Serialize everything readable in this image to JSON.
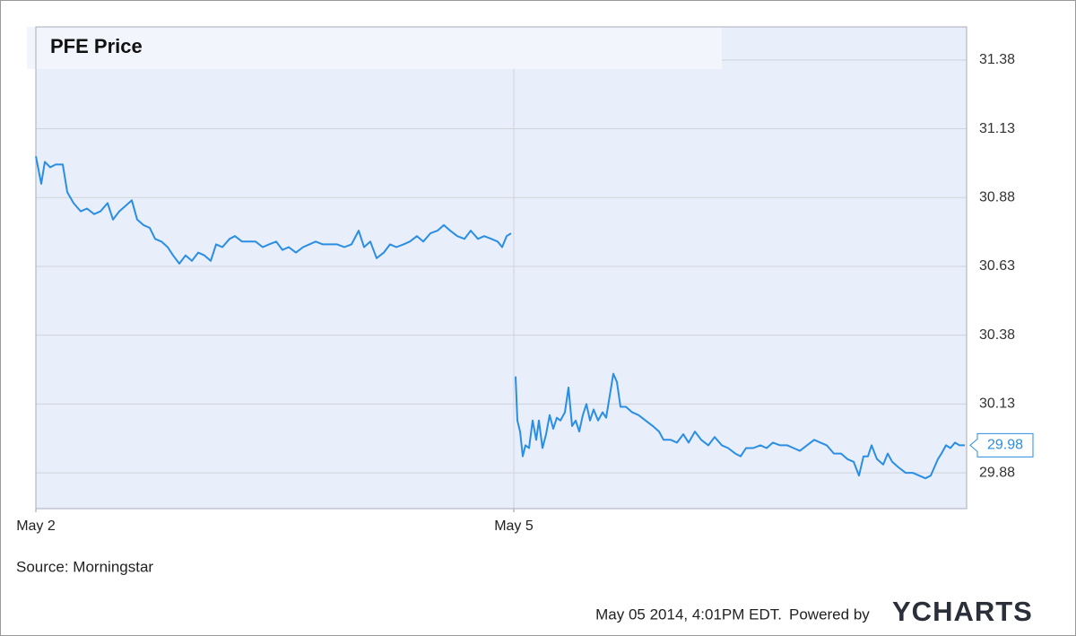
{
  "chart_data": {
    "type": "line",
    "title": "PFE Price",
    "source": "Source: Morningstar",
    "timestamp": "May 05 2014, 4:01PM EDT.",
    "powered_by": "Powered by",
    "brand": "YCHARTS",
    "xlim": [
      0,
      1038
    ],
    "xticks": [
      {
        "value": 0,
        "label": "May 2"
      },
      {
        "value": 533,
        "label": "May 5"
      }
    ],
    "ylim": [
      29.75,
      31.5
    ],
    "yticks": [
      29.88,
      30.13,
      30.38,
      30.63,
      30.88,
      31.13,
      31.38
    ],
    "grid": true,
    "x": [
      0,
      6,
      10,
      16,
      22,
      30,
      35,
      42,
      50,
      57,
      65,
      72,
      80,
      86,
      93,
      100,
      107,
      113,
      120,
      127,
      133,
      140,
      147,
      153,
      160,
      167,
      174,
      181,
      188,
      195,
      201,
      208,
      216,
      222,
      230,
      238,
      245,
      253,
      260,
      268,
      275,
      282,
      290,
      298,
      305,
      312,
      320,
      328,
      336,
      344,
      352,
      360,
      366,
      373,
      380,
      388,
      395,
      402,
      410,
      417,
      425,
      432,
      440,
      448,
      455,
      462,
      470,
      478,
      485,
      493,
      500,
      508,
      515,
      520,
      525,
      530,
      532,
      535,
      537,
      540,
      543,
      546,
      550,
      554,
      558,
      561,
      565,
      569,
      573,
      577,
      581,
      585,
      590,
      594,
      598,
      602,
      606,
      610,
      614,
      618,
      622,
      627,
      632,
      636,
      640,
      644,
      648,
      652,
      658,
      665,
      672,
      680,
      688,
      695,
      700,
      708,
      715,
      722,
      728,
      735,
      742,
      750,
      757,
      765,
      772,
      780,
      786,
      792,
      800,
      808,
      815,
      822,
      830,
      838,
      845,
      852,
      860,
      868,
      875,
      882,
      890,
      898,
      905,
      912,
      918,
      923,
      928,
      932,
      938,
      945,
      950,
      955,
      962,
      970,
      978,
      985,
      992,
      998,
      1002,
      1006,
      1010,
      1015,
      1020,
      1025,
      1030,
      1036
    ],
    "series": [
      {
        "name": "PFE Price",
        "color": "#2a8ee4",
        "values": [
          31.03,
          30.93,
          31.01,
          30.99,
          31.0,
          31.0,
          30.9,
          30.86,
          30.83,
          30.84,
          30.82,
          30.83,
          30.86,
          30.8,
          30.83,
          30.85,
          30.87,
          30.8,
          30.78,
          30.77,
          30.73,
          30.72,
          30.7,
          30.67,
          30.64,
          30.67,
          30.65,
          30.68,
          30.67,
          30.65,
          30.71,
          30.7,
          30.73,
          30.74,
          30.72,
          30.72,
          30.72,
          30.7,
          30.71,
          30.72,
          30.69,
          30.7,
          30.68,
          30.7,
          30.71,
          30.72,
          30.71,
          30.71,
          30.71,
          30.7,
          30.71,
          30.76,
          30.7,
          30.72,
          30.66,
          30.68,
          30.71,
          30.7,
          30.71,
          30.72,
          30.74,
          30.72,
          30.75,
          30.76,
          30.78,
          30.76,
          30.74,
          30.73,
          30.76,
          30.73,
          30.74,
          30.73,
          30.72,
          30.7,
          30.74,
          30.75,
          null,
          30.23,
          30.07,
          30.03,
          29.94,
          29.98,
          29.97,
          30.07,
          30.0,
          30.07,
          29.97,
          30.02,
          30.09,
          30.04,
          30.08,
          30.07,
          30.1,
          30.19,
          30.05,
          30.07,
          30.03,
          30.09,
          30.13,
          30.07,
          30.11,
          30.07,
          30.1,
          30.08,
          30.16,
          30.24,
          30.21,
          30.12,
          30.12,
          30.1,
          30.09,
          30.07,
          30.05,
          30.03,
          30.0,
          30.0,
          29.99,
          30.02,
          29.99,
          30.03,
          30.0,
          29.98,
          30.01,
          29.98,
          29.97,
          29.95,
          29.94,
          29.97,
          29.97,
          29.98,
          29.97,
          29.99,
          29.98,
          29.98,
          29.97,
          29.96,
          29.98,
          30.0,
          29.99,
          29.98,
          29.95,
          29.95,
          29.93,
          29.92,
          29.87,
          29.94,
          29.94,
          29.98,
          29.93,
          29.91,
          29.95,
          29.92,
          29.9,
          29.88,
          29.88,
          29.87,
          29.86,
          29.87,
          29.9,
          29.93,
          29.95,
          29.98,
          29.97,
          29.99,
          29.98,
          29.98
        ]
      }
    ]
  }
}
